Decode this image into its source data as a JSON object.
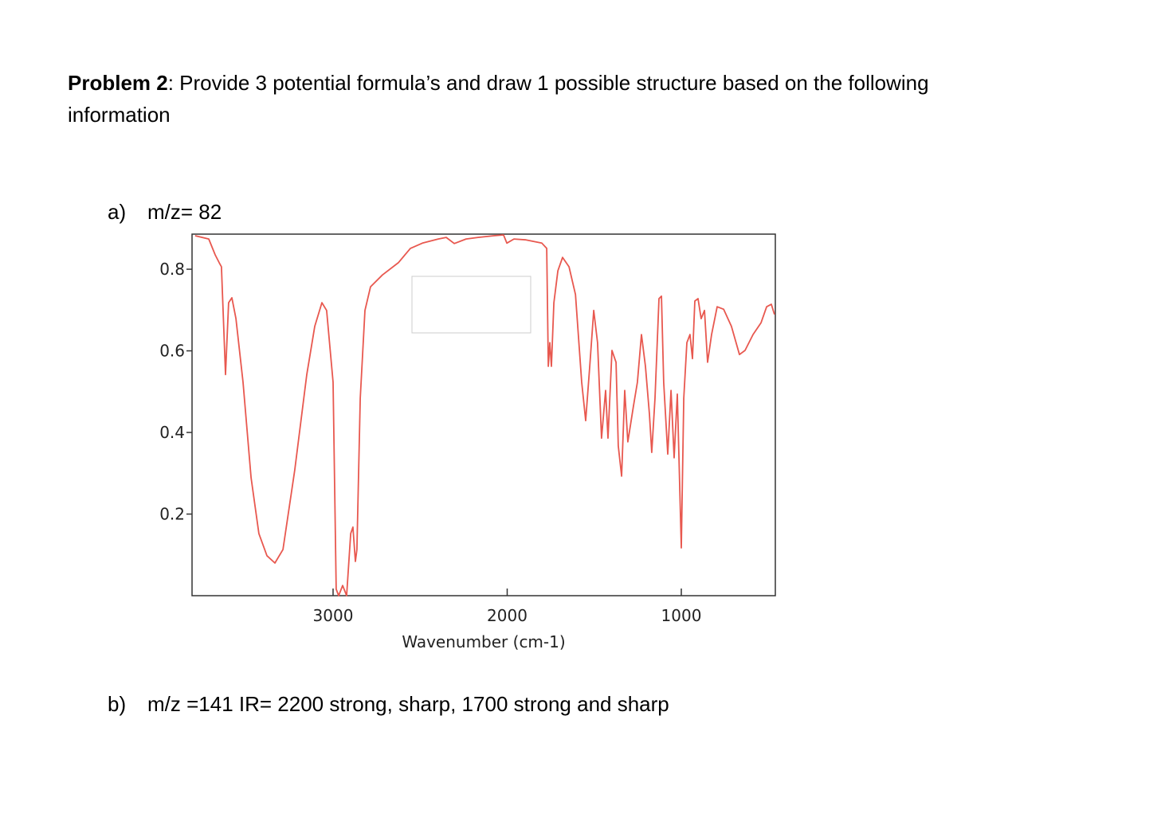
{
  "problem": {
    "label": "Problem 2",
    "text": ": Provide 3 potential formula’s and draw 1 possible structure based on the following",
    "text2": "information"
  },
  "parts": [
    {
      "marker": "a)",
      "text": "m/z= 82"
    },
    {
      "marker": "b)",
      "text": "m/z =141 IR= 2200 strong, sharp, 1700 strong and sharp"
    }
  ],
  "chart_data": {
    "type": "line",
    "xlabel": "Wavenumber (cm-1)",
    "color": "#e8584f",
    "xlim": [
      3810,
      460
    ],
    "ylim": [
      0,
      0.886
    ],
    "xticks": [
      3000,
      2000,
      1000
    ],
    "yticks": [
      0.2,
      0.4,
      0.6,
      0.8
    ],
    "x": [
      3792,
      3714,
      3677,
      3654,
      3641,
      3618,
      3600,
      3581,
      3558,
      3517,
      3471,
      3426,
      3380,
      3334,
      3288,
      3220,
      3151,
      3105,
      3064,
      3037,
      3000,
      2982,
      2968,
      2945,
      2922,
      2899,
      2886,
      2872,
      2863,
      2844,
      2817,
      2785,
      2716,
      2625,
      2556,
      2487,
      2396,
      2350,
      2304,
      2236,
      2167,
      2076,
      2021,
      2002,
      1961,
      1892,
      1801,
      1773,
      1764,
      1755,
      1746,
      1732,
      1709,
      1682,
      1645,
      1608,
      1572,
      1549,
      1526,
      1503,
      1481,
      1458,
      1435,
      1421,
      1398,
      1375,
      1362,
      1343,
      1325,
      1307,
      1275,
      1252,
      1229,
      1206,
      1183,
      1170,
      1151,
      1128,
      1114,
      1101,
      1078,
      1059,
      1041,
      1023,
      1000,
      986,
      968,
      950,
      936,
      922,
      904,
      886,
      867,
      849,
      826,
      794,
      757,
      712,
      666,
      634,
      588,
      542,
      510,
      483,
      465
    ],
    "values": [
      0.882,
      0.874,
      0.835,
      0.816,
      0.806,
      0.542,
      0.718,
      0.73,
      0.679,
      0.523,
      0.289,
      0.152,
      0.098,
      0.08,
      0.113,
      0.308,
      0.542,
      0.66,
      0.718,
      0.699,
      0.523,
      0.016,
      0.0,
      0.025,
      0.0,
      0.152,
      0.168,
      0.084,
      0.113,
      0.484,
      0.699,
      0.757,
      0.786,
      0.816,
      0.851,
      0.864,
      0.874,
      0.878,
      0.863,
      0.874,
      0.878,
      0.882,
      0.884,
      0.864,
      0.874,
      0.872,
      0.864,
      0.851,
      0.562,
      0.62,
      0.562,
      0.718,
      0.796,
      0.829,
      0.806,
      0.738,
      0.523,
      0.429,
      0.562,
      0.699,
      0.62,
      0.386,
      0.503,
      0.386,
      0.601,
      0.572,
      0.367,
      0.293,
      0.503,
      0.377,
      0.464,
      0.523,
      0.64,
      0.562,
      0.445,
      0.351,
      0.484,
      0.728,
      0.734,
      0.523,
      0.347,
      0.503,
      0.338,
      0.494,
      0.117,
      0.484,
      0.62,
      0.64,
      0.581,
      0.722,
      0.728,
      0.679,
      0.699,
      0.572,
      0.64,
      0.708,
      0.702,
      0.66,
      0.591,
      0.601,
      0.64,
      0.669,
      0.708,
      0.714,
      0.689
    ]
  }
}
